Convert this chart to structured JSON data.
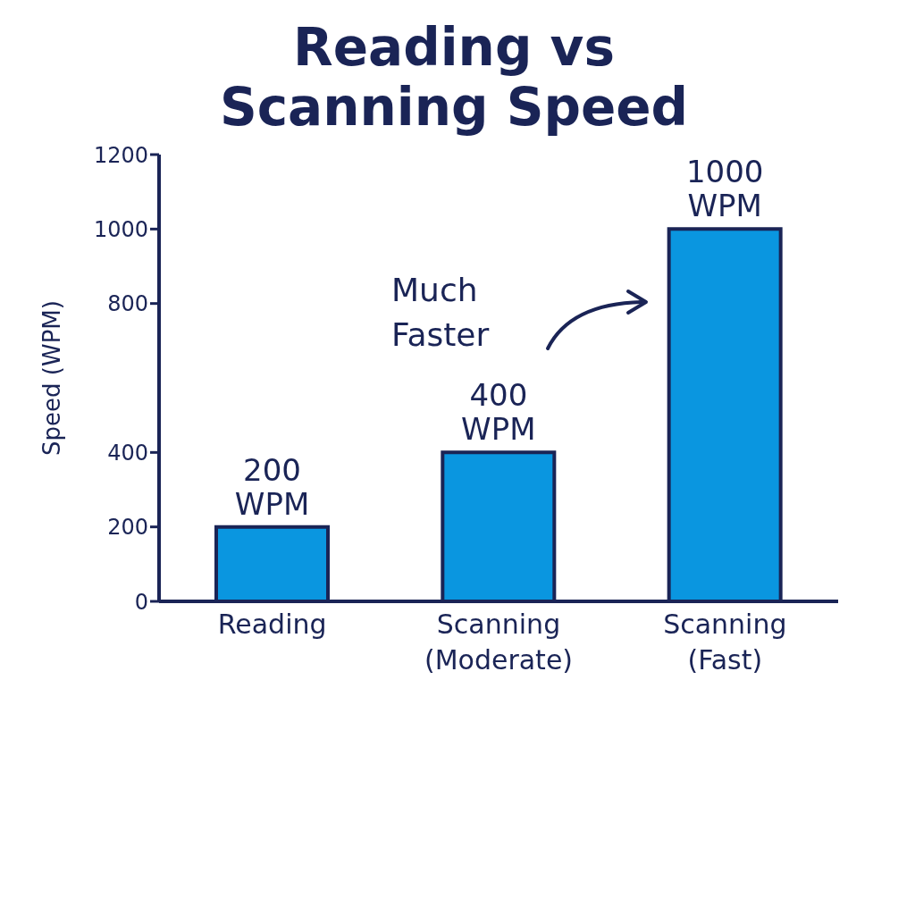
{
  "chart_data": {
    "type": "bar",
    "title": "Reading vs Scanning Speed",
    "ylabel": "Speed (WPM)",
    "categories": [
      "Reading",
      "Scanning (Moderate)",
      "Scanning (Fast)"
    ],
    "values": [
      200,
      400,
      1000
    ],
    "color": "#0a96e0",
    "value_labels": [
      "200 WPM",
      "400 WPM",
      "1000 WPM"
    ],
    "ylim": [
      0,
      1200
    ],
    "yticks": [
      0,
      200,
      400,
      800,
      1000,
      1200
    ],
    "grid": false,
    "annotations": [
      "Much Faster"
    ]
  }
}
